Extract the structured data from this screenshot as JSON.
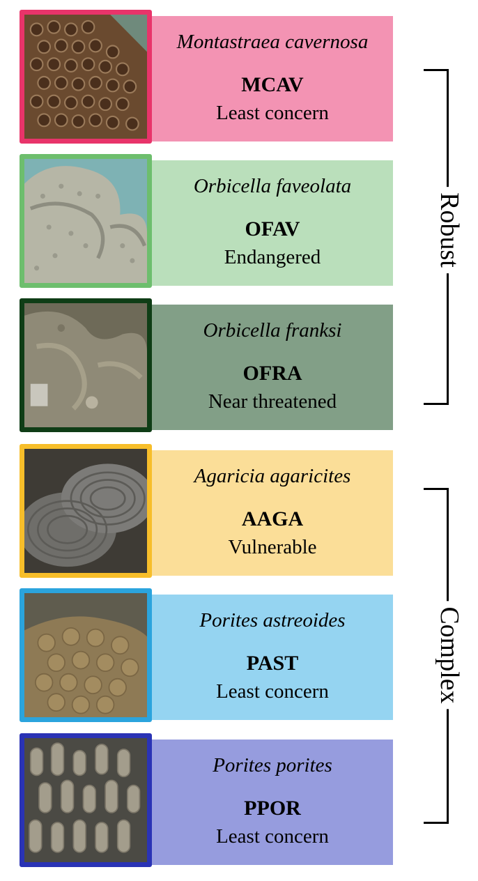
{
  "rows": [
    {
      "species": "Montastraea cavernosa",
      "code": "MCAV",
      "status": "Least concern",
      "border_color": "#E8346A",
      "panel_color": "#F393B3",
      "photo_texture": "coral-cavernosa-polyps"
    },
    {
      "species": "Orbicella faveolata",
      "code": "OFAV",
      "status": "Endangered",
      "border_color": "#6DBE6D",
      "panel_color": "#BADFBB",
      "photo_texture": "coral-faveolata-mounds"
    },
    {
      "species": "Orbicella franksi",
      "code": "OFRA",
      "status": "Near threatened",
      "border_color": "#0F3D16",
      "panel_color": "#829F87",
      "photo_texture": "coral-franksi-lobes"
    },
    {
      "species": "Agaricia agaricites",
      "code": "AAGA",
      "status": "Vulnerable",
      "border_color": "#F7BE2A",
      "panel_color": "#FBDE98",
      "photo_texture": "coral-agaricites-plates"
    },
    {
      "species": "Porites astreoides",
      "code": "PAST",
      "status": "Least concern",
      "border_color": "#2BA4DD",
      "panel_color": "#95D4F1",
      "photo_texture": "coral-astreoides-knobs"
    },
    {
      "species": "Porites porites",
      "code": "PPOR",
      "status": "Least concern",
      "border_color": "#2A33B5",
      "panel_color": "#969CDE",
      "photo_texture": "coral-porites-branches"
    }
  ],
  "groups": [
    {
      "label": "Robust"
    },
    {
      "label": "Complex"
    }
  ]
}
